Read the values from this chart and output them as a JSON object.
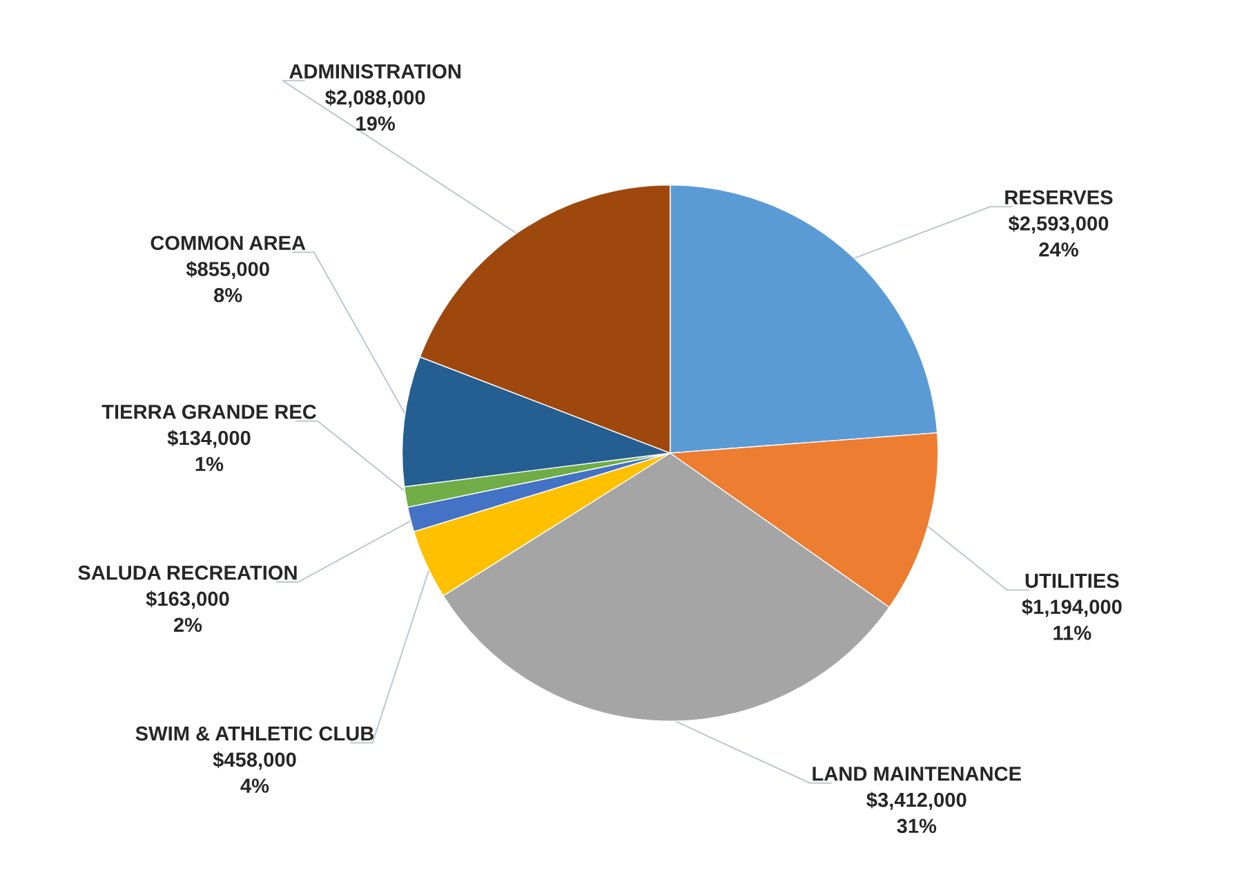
{
  "chart_data": {
    "type": "pie",
    "categories": [
      "RESERVES",
      "UTILITIES",
      "LAND MAINTENANCE",
      "SWIM & ATHLETIC CLUB",
      "SALUDA RECREATION",
      "TIERRA GRANDE REC",
      "COMMON AREA",
      "ADMINISTRATION"
    ],
    "values": [
      2593000,
      1194000,
      3412000,
      458000,
      163000,
      134000,
      855000,
      2088000
    ],
    "colors": [
      "#5b9bd5",
      "#ed7d31",
      "#a5a5a5",
      "#ffc000",
      "#4472c4",
      "#70ad47",
      "#255e91",
      "#9e480e"
    ],
    "value_labels": [
      "$2,593,000\n24%",
      "$1,194,000\n11%",
      "$3,412,000\n31%",
      "$458,000\n4%",
      "$163,000\n2%",
      "$134,000\n1%",
      "$855,000\n8%",
      "$2,088,000\n19%"
    ],
    "legend": false
  }
}
